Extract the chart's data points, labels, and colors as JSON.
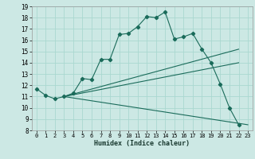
{
  "title": "",
  "xlabel": "Humidex (Indice chaleur)",
  "bg_color": "#cce8e4",
  "line_color": "#1a6b5a",
  "grid_color": "#aad8d0",
  "xlim": [
    -0.5,
    23.5
  ],
  "ylim": [
    8,
    19
  ],
  "xticks": [
    0,
    1,
    2,
    3,
    4,
    5,
    6,
    7,
    8,
    9,
    10,
    11,
    12,
    13,
    14,
    15,
    16,
    17,
    18,
    19,
    20,
    21,
    22,
    23
  ],
  "yticks": [
    8,
    9,
    10,
    11,
    12,
    13,
    14,
    15,
    16,
    17,
    18,
    19
  ],
  "series_main": {
    "x": [
      0,
      1,
      2,
      3,
      4,
      5,
      6,
      7,
      8,
      9,
      10,
      11,
      12,
      13,
      14,
      15,
      16,
      17,
      18,
      19,
      20,
      21,
      22
    ],
    "y": [
      11.7,
      11.1,
      10.8,
      11.0,
      11.3,
      12.6,
      12.5,
      14.3,
      14.3,
      16.5,
      16.6,
      17.2,
      18.1,
      18.0,
      18.5,
      16.1,
      16.3,
      16.6,
      15.2,
      14.0,
      12.1,
      10.0,
      8.5
    ]
  },
  "line1": {
    "x": [
      3,
      22
    ],
    "y": [
      11.0,
      15.2
    ]
  },
  "line2": {
    "x": [
      3,
      22
    ],
    "y": [
      11.0,
      14.0
    ]
  },
  "line3": {
    "x": [
      3,
      23
    ],
    "y": [
      11.0,
      8.5
    ]
  }
}
